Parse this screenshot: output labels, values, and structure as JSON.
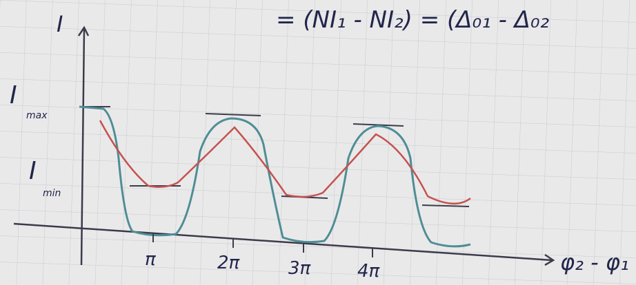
{
  "equation": "= (NI₁ - NI₂) = (Δ₀₁ - Δ₀₂",
  "axes": {
    "y_label": "I",
    "x_label": "φ₂ - φ₁"
  },
  "levels": [
    {
      "main": "I",
      "sub": "max"
    },
    {
      "main": "I",
      "sub": "min"
    }
  ],
  "x_ticks": [
    "π",
    "2π",
    "3π",
    "4π"
  ]
}
